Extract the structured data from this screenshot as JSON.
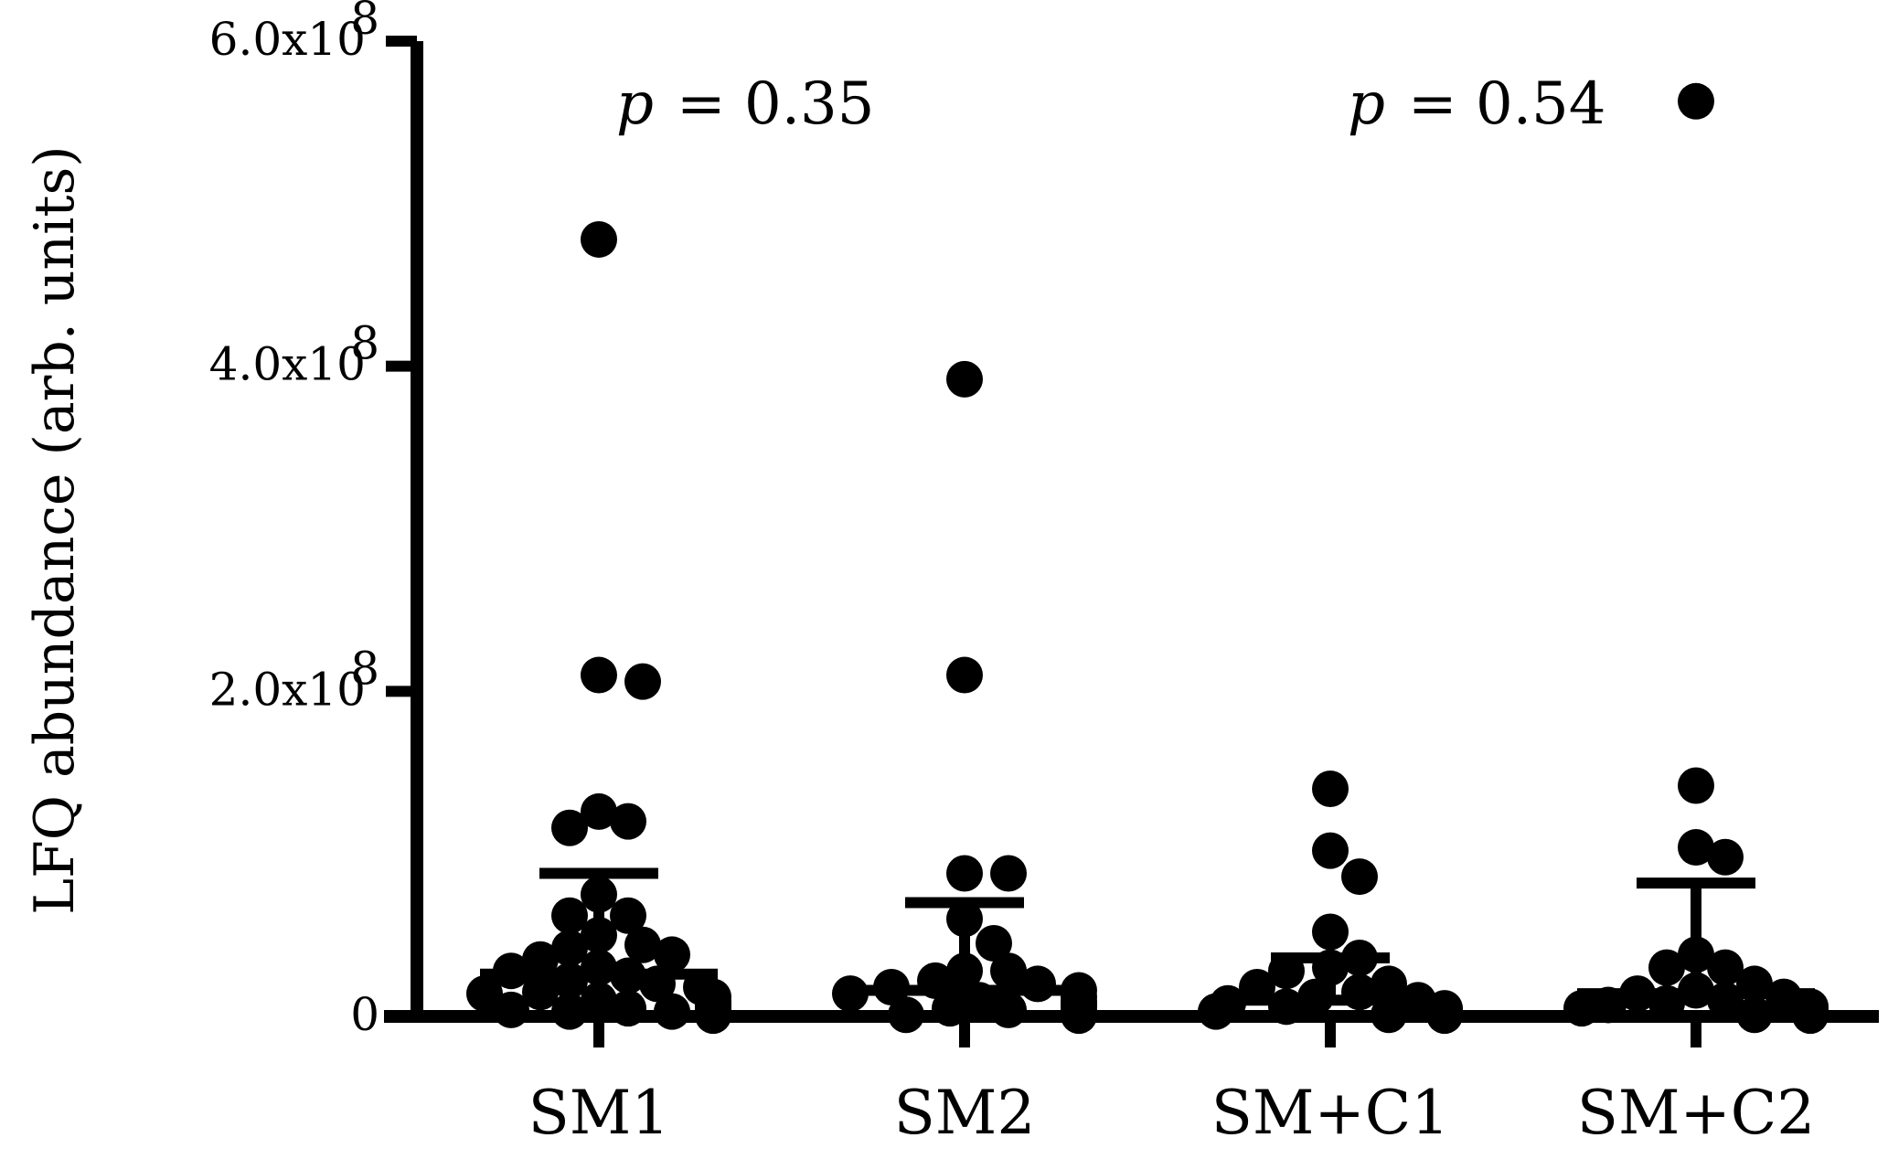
{
  "chart_data": {
    "type": "scatter",
    "title": "",
    "xlabel": "",
    "ylabel": "LFQ abundance (arb. units)",
    "ylim": [
      0,
      600000000
    ],
    "y_ticks": [
      {
        "value": 0,
        "label": "0"
      },
      {
        "value": 200000000,
        "label": "2.0x10",
        "exp": "8"
      },
      {
        "value": 400000000,
        "label": "4.0x10",
        "exp": "8"
      },
      {
        "value": 600000000,
        "label": "6.0x10",
        "exp": "8"
      }
    ],
    "categories": [
      "SM1",
      "SM2",
      "SM+C1",
      "SM+C2"
    ],
    "annotations": [
      {
        "p_symbol": "p",
        "text": "= 0.35",
        "between": [
          "SM1",
          "SM2"
        ]
      },
      {
        "p_symbol": "p",
        "text": "= 0.54",
        "between": [
          "SM+C1",
          "SM+C2"
        ]
      }
    ],
    "series": [
      {
        "category": "SM1",
        "mean": 26000000,
        "sd_upper": 88000000,
        "values": [
          478000000,
          206000000,
          210000000,
          120000000,
          116000000,
          126000000,
          75000000,
          62000000,
          62000000,
          50000000,
          44000000,
          42000000,
          38000000,
          35000000,
          30000000,
          28000000,
          25000000,
          22000000,
          20000000,
          18000000,
          15000000,
          14000000,
          12000000,
          10000000,
          9000000,
          8000000,
          7000000,
          6000000,
          5000000,
          4000000,
          4000000,
          3000000,
          3000000,
          2000000,
          2000000,
          1000000,
          1000000,
          500000
        ]
      },
      {
        "category": "SM2",
        "mean": 16000000,
        "sd_upper": 70000000,
        "values": [
          392000000,
          210000000,
          88000000,
          88000000,
          60000000,
          45000000,
          28000000,
          28000000,
          22000000,
          20000000,
          18000000,
          16000000,
          14000000,
          12000000,
          10000000,
          9000000,
          8000000,
          7000000,
          6000000,
          5000000,
          4000000,
          3000000,
          2000000,
          1000000,
          500000
        ]
      },
      {
        "category": "SM+C1",
        "mean": 10000000,
        "sd_upper": 36000000,
        "values": [
          140000000,
          102000000,
          86000000,
          52000000,
          36000000,
          30000000,
          28000000,
          20000000,
          18000000,
          15000000,
          12000000,
          10000000,
          8000000,
          6000000,
          5000000,
          4000000,
          3000000,
          2000000,
          1000000,
          500000
        ]
      },
      {
        "category": "SM+C2",
        "mean": 14000000,
        "sd_upper": 82000000,
        "values": [
          563000000,
          142000000,
          104000000,
          98000000,
          38000000,
          30000000,
          30000000,
          20000000,
          16000000,
          14000000,
          12000000,
          10000000,
          8000000,
          7000000,
          6000000,
          5000000,
          4000000,
          3000000,
          2000000,
          1000000,
          500000
        ]
      }
    ]
  }
}
